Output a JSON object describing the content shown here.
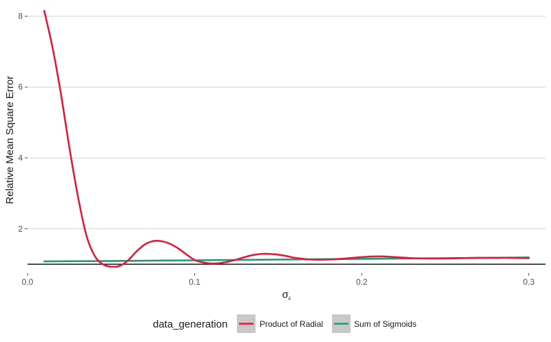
{
  "chart_data": {
    "type": "line",
    "title": "",
    "xlabel": "σ",
    "xlabel_subscript": "ε",
    "ylabel": "Relative Mean Square Error",
    "xlim": [
      0,
      0.31
    ],
    "ylim": [
      0.75,
      8.3
    ],
    "x_ticks": [
      0.0,
      0.1,
      0.2,
      0.3
    ],
    "x_tick_labels": [
      "0.0",
      "0.1",
      "0.2",
      "0.3"
    ],
    "y_ticks": [
      2,
      4,
      6,
      8
    ],
    "y_tick_labels": [
      "2",
      "4",
      "6",
      "8"
    ],
    "reference_line_y": 1,
    "grid": "horizontal",
    "legend": {
      "title": "data_generation",
      "position": "bottom"
    },
    "series": [
      {
        "name": "Product of Radial",
        "color": "#e4193a",
        "x": [
          0.01,
          0.015,
          0.02,
          0.025,
          0.03,
          0.035,
          0.04,
          0.045,
          0.05,
          0.055,
          0.06,
          0.065,
          0.07,
          0.075,
          0.08,
          0.085,
          0.09,
          0.095,
          0.1,
          0.105,
          0.11,
          0.115,
          0.12,
          0.125,
          0.13,
          0.135,
          0.14,
          0.145,
          0.15,
          0.155,
          0.16,
          0.17,
          0.18,
          0.19,
          0.2,
          0.21,
          0.22,
          0.23,
          0.24,
          0.25,
          0.26,
          0.27,
          0.28,
          0.29,
          0.3
        ],
        "y": [
          8.15,
          7.1,
          5.8,
          4.3,
          2.95,
          1.85,
          1.25,
          1.0,
          0.93,
          0.95,
          1.1,
          1.35,
          1.55,
          1.65,
          1.65,
          1.58,
          1.45,
          1.28,
          1.12,
          1.05,
          1.02,
          1.03,
          1.07,
          1.13,
          1.2,
          1.26,
          1.29,
          1.29,
          1.27,
          1.23,
          1.18,
          1.13,
          1.13,
          1.16,
          1.2,
          1.22,
          1.2,
          1.17,
          1.16,
          1.16,
          1.17,
          1.18,
          1.18,
          1.18,
          1.17
        ]
      },
      {
        "name": "Sum of Sigmoids",
        "color": "#1b9e77",
        "x": [
          0.01,
          0.05,
          0.1,
          0.15,
          0.2,
          0.25,
          0.3
        ],
        "y": [
          1.08,
          1.09,
          1.11,
          1.13,
          1.15,
          1.17,
          1.19
        ]
      }
    ]
  }
}
